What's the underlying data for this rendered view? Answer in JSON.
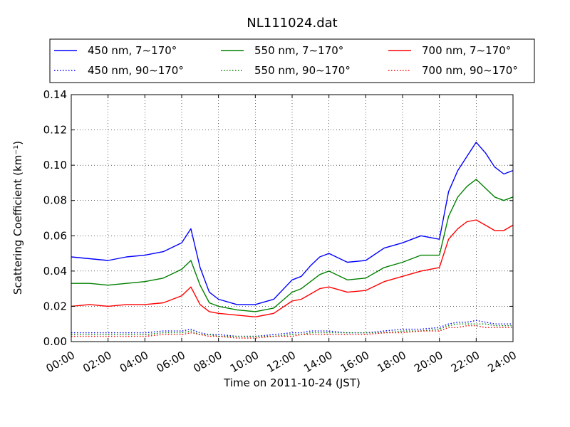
{
  "chart_data": {
    "type": "line",
    "title": "NL111024.dat",
    "xlabel": "Time on 2011-10-24 (JST)",
    "ylabel": "Scattering Coefficient (km⁻¹)",
    "xlim": [
      0,
      24
    ],
    "ylim": [
      0,
      0.14
    ],
    "x_ticks": [
      "00:00",
      "02:00",
      "04:00",
      "06:00",
      "08:00",
      "10:00",
      "12:00",
      "14:00",
      "16:00",
      "18:00",
      "20:00",
      "22:00",
      "24:00"
    ],
    "y_ticks": [
      "0.00",
      "0.02",
      "0.04",
      "0.06",
      "0.08",
      "0.10",
      "0.12",
      "0.14"
    ],
    "grid": true,
    "legend_position": "top",
    "x_hours": [
      0,
      1,
      2,
      3,
      4,
      5,
      6,
      6.5,
      7,
      7.5,
      8,
      9,
      10,
      11,
      12,
      12.5,
      13,
      13.5,
      14,
      15,
      16,
      17,
      18,
      19,
      20,
      20.5,
      21,
      21.5,
      22,
      22.5,
      23,
      23.5,
      24
    ],
    "series": [
      {
        "name": "450 nm, 7∼170°",
        "color": "#0000ff",
        "style": "solid",
        "values": [
          0.048,
          0.047,
          0.046,
          0.048,
          0.049,
          0.051,
          0.056,
          0.064,
          0.042,
          0.028,
          0.024,
          0.021,
          0.021,
          0.024,
          0.035,
          0.037,
          0.043,
          0.048,
          0.05,
          0.045,
          0.046,
          0.053,
          0.056,
          0.06,
          0.058,
          0.085,
          0.097,
          0.105,
          0.113,
          0.107,
          0.099,
          0.095,
          0.097
        ]
      },
      {
        "name": "550 nm, 7∼170°",
        "color": "#008000",
        "style": "solid",
        "values": [
          0.033,
          0.033,
          0.032,
          0.033,
          0.034,
          0.036,
          0.041,
          0.046,
          0.032,
          0.022,
          0.02,
          0.018,
          0.017,
          0.019,
          0.028,
          0.03,
          0.034,
          0.038,
          0.04,
          0.035,
          0.036,
          0.042,
          0.045,
          0.049,
          0.049,
          0.071,
          0.082,
          0.088,
          0.092,
          0.087,
          0.082,
          0.08,
          0.082
        ]
      },
      {
        "name": "700 nm, 7∼170°",
        "color": "#ff0000",
        "style": "solid",
        "values": [
          0.02,
          0.021,
          0.02,
          0.021,
          0.021,
          0.022,
          0.026,
          0.031,
          0.021,
          0.017,
          0.016,
          0.015,
          0.014,
          0.016,
          0.023,
          0.024,
          0.027,
          0.03,
          0.031,
          0.028,
          0.029,
          0.034,
          0.037,
          0.04,
          0.042,
          0.058,
          0.064,
          0.068,
          0.069,
          0.066,
          0.063,
          0.063,
          0.066
        ]
      },
      {
        "name": "450 nm, 90∼170°",
        "color": "#0000ff",
        "style": "dotted",
        "values": [
          0.005,
          0.005,
          0.005,
          0.005,
          0.005,
          0.006,
          0.006,
          0.007,
          0.005,
          0.004,
          0.004,
          0.003,
          0.003,
          0.004,
          0.005,
          0.005,
          0.006,
          0.006,
          0.006,
          0.005,
          0.005,
          0.006,
          0.007,
          0.007,
          0.008,
          0.01,
          0.011,
          0.011,
          0.012,
          0.011,
          0.01,
          0.01,
          0.01
        ]
      },
      {
        "name": "550 nm, 90∼170°",
        "color": "#008000",
        "style": "dotted",
        "values": [
          0.004,
          0.004,
          0.004,
          0.004,
          0.004,
          0.005,
          0.005,
          0.006,
          0.004,
          0.004,
          0.003,
          0.003,
          0.003,
          0.003,
          0.004,
          0.004,
          0.005,
          0.005,
          0.005,
          0.005,
          0.005,
          0.005,
          0.006,
          0.006,
          0.007,
          0.009,
          0.01,
          0.01,
          0.01,
          0.01,
          0.009,
          0.009,
          0.009
        ]
      },
      {
        "name": "700 nm, 90∼170°",
        "color": "#ff0000",
        "style": "dotted",
        "values": [
          0.003,
          0.003,
          0.003,
          0.003,
          0.003,
          0.004,
          0.004,
          0.005,
          0.004,
          0.003,
          0.003,
          0.002,
          0.002,
          0.003,
          0.003,
          0.004,
          0.004,
          0.004,
          0.004,
          0.004,
          0.004,
          0.005,
          0.005,
          0.006,
          0.006,
          0.008,
          0.008,
          0.009,
          0.009,
          0.008,
          0.008,
          0.008,
          0.008
        ]
      }
    ]
  }
}
